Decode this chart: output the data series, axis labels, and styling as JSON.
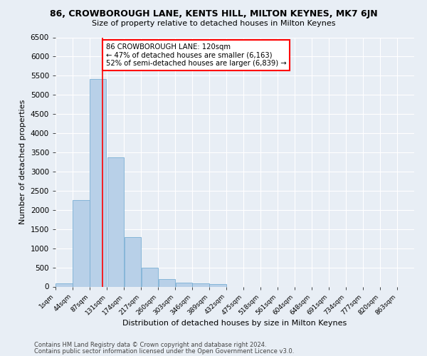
{
  "title": "86, CROWBOROUGH LANE, KENTS HILL, MILTON KEYNES, MK7 6JN",
  "subtitle": "Size of property relative to detached houses in Milton Keynes",
  "xlabel": "Distribution of detached houses by size in Milton Keynes",
  "ylabel": "Number of detached properties",
  "bar_values": [
    75,
    2260,
    5420,
    3380,
    1290,
    490,
    195,
    100,
    75,
    60,
    0,
    0,
    0,
    0,
    0,
    0,
    0,
    0,
    0,
    0
  ],
  "bar_labels": [
    "1sqm",
    "44sqm",
    "87sqm",
    "131sqm",
    "174sqm",
    "217sqm",
    "260sqm",
    "303sqm",
    "346sqm",
    "389sqm",
    "432sqm",
    "475sqm",
    "518sqm",
    "561sqm",
    "604sqm",
    "648sqm",
    "691sqm",
    "734sqm",
    "777sqm",
    "820sqm",
    "863sqm"
  ],
  "bar_color": "#b8d0e8",
  "bar_edge_color": "#7aafd4",
  "ylim": [
    0,
    6500
  ],
  "yticks": [
    0,
    500,
    1000,
    1500,
    2000,
    2500,
    3000,
    3500,
    4000,
    4500,
    5000,
    5500,
    6000,
    6500
  ],
  "red_line_x": 120,
  "annotation_title": "86 CROWBOROUGH LANE: 120sqm",
  "annotation_line1": "← 47% of detached houses are smaller (6,163)",
  "annotation_line2": "52% of semi-detached houses are larger (6,839) →",
  "footer_line1": "Contains HM Land Registry data © Crown copyright and database right 2024.",
  "footer_line2": "Contains public sector information licensed under the Open Government Licence v3.0.",
  "bg_color": "#e8eef5",
  "grid_color": "#ffffff",
  "bin_starts": [
    1,
    44,
    87,
    131,
    174,
    217,
    260,
    303,
    346,
    389,
    432,
    475,
    518,
    561,
    604,
    648,
    691,
    734,
    777,
    820
  ],
  "bin_width": 43,
  "tick_positions": [
    1,
    44,
    87,
    131,
    174,
    217,
    260,
    303,
    346,
    389,
    432,
    475,
    518,
    561,
    604,
    648,
    691,
    734,
    777,
    820,
    863
  ],
  "xlim_min": 1,
  "xlim_max": 906
}
